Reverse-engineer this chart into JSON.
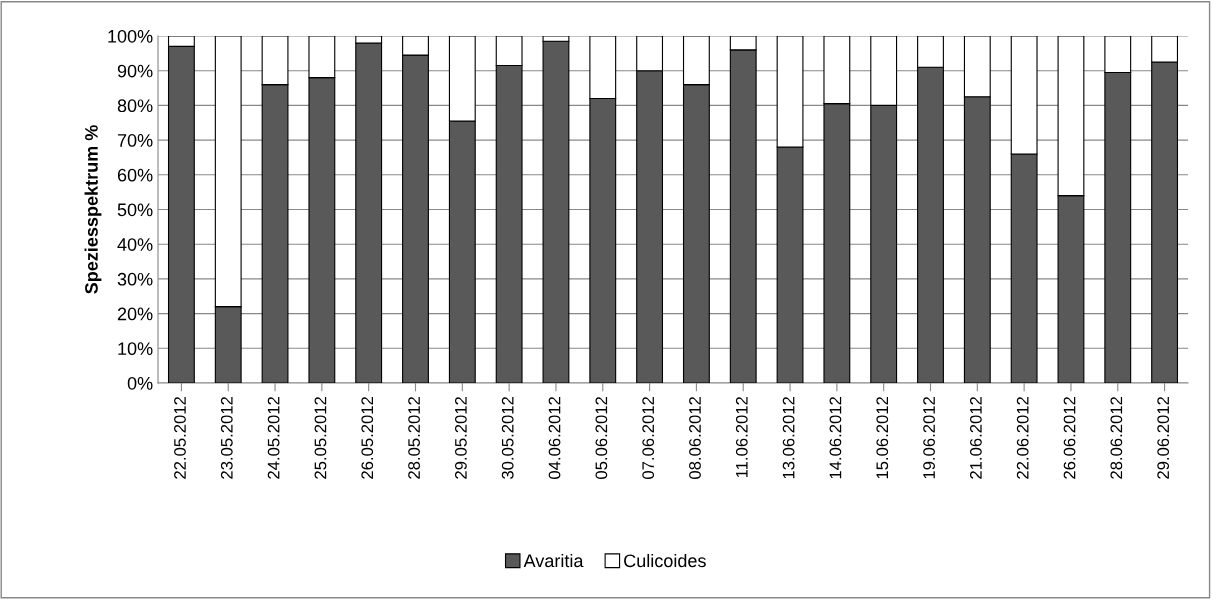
{
  "chart_data": {
    "type": "bar",
    "stacked": true,
    "ylabel": "Speziesspektrum %",
    "categories": [
      "22.05.2012",
      "23.05.2012",
      "24.05.2012",
      "25.05.2012",
      "26.05.2012",
      "28.05.2012",
      "29.05.2012",
      "30.05.2012",
      "04.06.2012",
      "05.06.2012",
      "07.06.2012",
      "08.06.2012",
      "11.06.2012",
      "13.06.2012",
      "14.06.2012",
      "15.06.2012",
      "19.06.2012",
      "21.06.2012",
      "22.06.2012",
      "26.06.2012",
      "28.06.2012",
      "29.06.2012"
    ],
    "series": [
      {
        "name": "Avaritia",
        "color": "#595959",
        "values": [
          97,
          22,
          86,
          88,
          98,
          94.5,
          75.5,
          91.5,
          98.5,
          82,
          90,
          86,
          96,
          68,
          80.5,
          80,
          91,
          82.5,
          66,
          54,
          89.5,
          92.5
        ]
      },
      {
        "name": "Culicoides",
        "color": "#ffffff",
        "values": [
          3,
          78,
          14,
          12,
          2,
          5.5,
          24.5,
          8.5,
          1.5,
          18,
          10,
          14,
          4,
          32,
          19.5,
          20,
          9,
          17.5,
          34,
          46,
          10.5,
          7.5
        ]
      }
    ],
    "ylim": [
      0,
      100
    ],
    "yticks": [
      {
        "value": 0,
        "label": "0%"
      },
      {
        "value": 10,
        "label": "10%"
      },
      {
        "value": 20,
        "label": "20%"
      },
      {
        "value": 30,
        "label": "30%"
      },
      {
        "value": 40,
        "label": "40%"
      },
      {
        "value": 50,
        "label": "50%"
      },
      {
        "value": 60,
        "label": "60%"
      },
      {
        "value": 70,
        "label": "70%"
      },
      {
        "value": 80,
        "label": "80%"
      },
      {
        "value": 90,
        "label": "90%"
      },
      {
        "value": 100,
        "label": "100%"
      }
    ],
    "grid": "y",
    "legend": "bottom"
  }
}
